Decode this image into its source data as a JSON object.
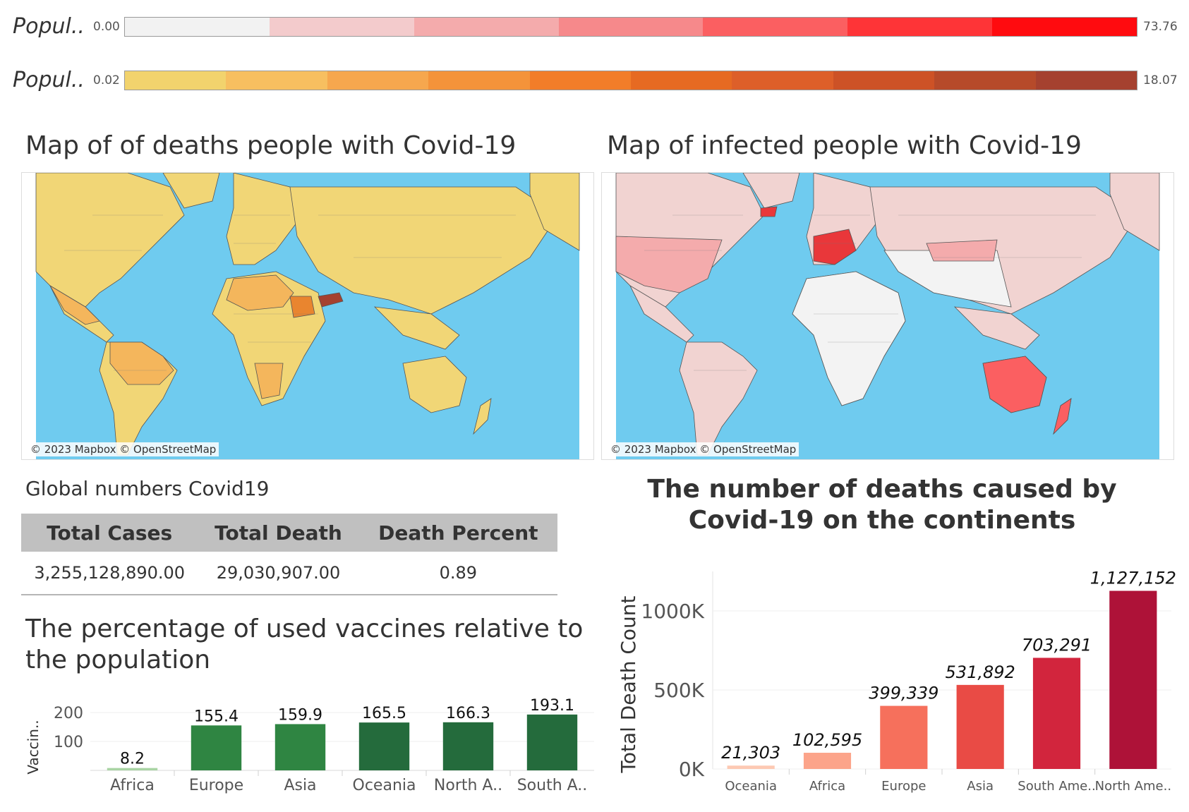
{
  "legends": [
    {
      "title": "Popul..",
      "min": "0.00",
      "max": "73.76",
      "colors": [
        "#f2f2f2",
        "#f3cbcc",
        "#f4abac",
        "#f6898b",
        "#fb5f61",
        "#fe3437",
        "#ff0b0f"
      ]
    },
    {
      "title": "Popul..",
      "min": "0.02",
      "max": "18.07",
      "colors": [
        "#f2d36d",
        "#f7bf60",
        "#f6a74e",
        "#f4933a",
        "#f27d29",
        "#e66a22",
        "#dd5f29",
        "#cd5226",
        "#b64a2a",
        "#a5412f"
      ]
    }
  ],
  "maps": {
    "deaths": {
      "title": "Map of of deaths people with Covid-19",
      "attribution": "© 2023 Mapbox © OpenStreetMap",
      "ocean_color": "#6fcbef",
      "land_color": "#f1d676",
      "highlight_colors": [
        "#f4b65c",
        "#e9852f",
        "#a5412f"
      ]
    },
    "infected": {
      "title": "Map of infected people with Covid-19",
      "attribution": "© 2023 Mapbox © OpenStreetMap",
      "ocean_color": "#6fcbef",
      "land_color": "#f1d3d1",
      "highlight_colors": [
        "#f3f3f3",
        "#f4abac",
        "#fb5f61",
        "#e9373a"
      ]
    }
  },
  "global": {
    "title": "Global numbers Covid19",
    "headers": [
      "Total Cases",
      "Total Death",
      "Death Percent"
    ],
    "values": [
      "3,255,128,890.00",
      "29,030,907.00",
      "0.89"
    ]
  },
  "vaccines": {
    "title_line1": "The percentage of used vaccines relative to",
    "title_line2": "the population"
  },
  "deaths_chart": {
    "title_line1": "The number of deaths caused by",
    "title_line2": "Covid-19 on the continents"
  },
  "chart_data": [
    {
      "type": "bar",
      "title": "The percentage of used vaccines relative to the population",
      "ylabel": "Vaccin..",
      "categories": [
        "Africa",
        "Europe",
        "Asia",
        "Oceania",
        "North A..",
        "South A.."
      ],
      "values": [
        8.2,
        155.4,
        159.9,
        165.5,
        166.3,
        193.1
      ],
      "labels": [
        "8.2",
        "155.4",
        "159.9",
        "165.5",
        "166.3",
        "193.1"
      ],
      "colors": [
        "#a9d4a4",
        "#2f8542",
        "#2f8542",
        "#246b3c",
        "#246b3c",
        "#246b3c"
      ],
      "ylim": [
        0,
        200
      ],
      "yticks": [
        100,
        200
      ],
      "ytick_labels": [
        "100",
        "200"
      ],
      "grid": true
    },
    {
      "type": "bar",
      "title": "The number of deaths caused by Covid-19 on the continents",
      "ylabel": "Total Death Count",
      "categories": [
        "Oceania",
        "Africa",
        "Europe",
        "Asia",
        "South Ame..",
        "North Ame.."
      ],
      "values": [
        21303,
        102595,
        399339,
        531892,
        703291,
        1127152
      ],
      "labels": [
        "21,303",
        "102,595",
        "399,339",
        "531,892",
        "703,291",
        "1,127,152"
      ],
      "colors": [
        "#fdc9b3",
        "#fca48a",
        "#f6705c",
        "#e94b45",
        "#d2253d",
        "#ae1238"
      ],
      "ylim": [
        0,
        1250000
      ],
      "yticks": [
        0,
        500000,
        1000000
      ],
      "ytick_labels": [
        "0K",
        "500K",
        "1000K"
      ],
      "grid": true
    }
  ]
}
